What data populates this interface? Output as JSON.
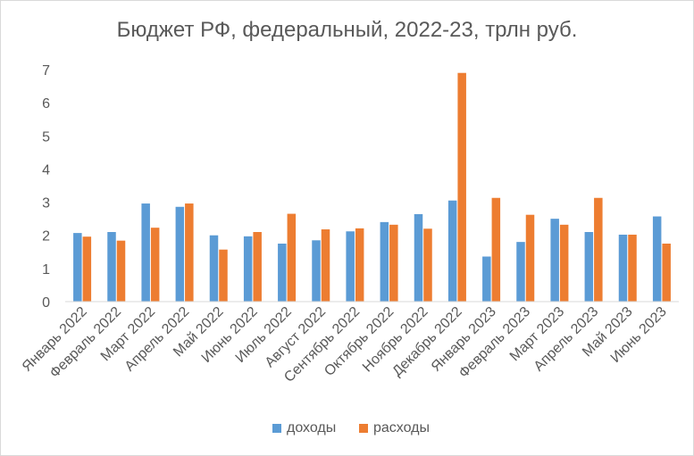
{
  "chart_data": {
    "type": "bar",
    "title": "Бюджет РФ, федеральный, 2022-23, трлн руб.",
    "categories": [
      "Январь 2022",
      "Февраль 2022",
      "Март 2022",
      "Апрель 2022",
      "Май 2022",
      "Июнь 2022",
      "Июль 2022",
      "Август 2022",
      "Сентябрь 2022",
      "Октябрь 2022",
      "Ноябрь 2022",
      "Декабрь 2022",
      "Январь 2023",
      "Февраль 2023",
      "Март 2023",
      "Апрель 2023",
      "Май 2023",
      "Июнь 2023"
    ],
    "series": [
      {
        "name": "доходы",
        "color": "#5b9bd5",
        "values": [
          2.07,
          2.1,
          2.96,
          2.86,
          2.0,
          1.97,
          1.75,
          1.85,
          2.12,
          2.4,
          2.64,
          3.05,
          1.36,
          1.8,
          2.5,
          2.1,
          2.02,
          2.57
        ]
      },
      {
        "name": "расходы",
        "color": "#ed7d31",
        "values": [
          1.96,
          1.84,
          2.23,
          2.96,
          1.57,
          2.1,
          2.65,
          2.18,
          2.21,
          2.32,
          2.2,
          6.9,
          3.13,
          2.62,
          2.32,
          3.13,
          2.02,
          1.75
        ]
      }
    ],
    "y_ticks": [
      "0",
      "1",
      "2",
      "3",
      "4",
      "5",
      "6",
      "7"
    ],
    "ylim": [
      0,
      7
    ],
    "grid": false,
    "legend_position": "bottom"
  }
}
